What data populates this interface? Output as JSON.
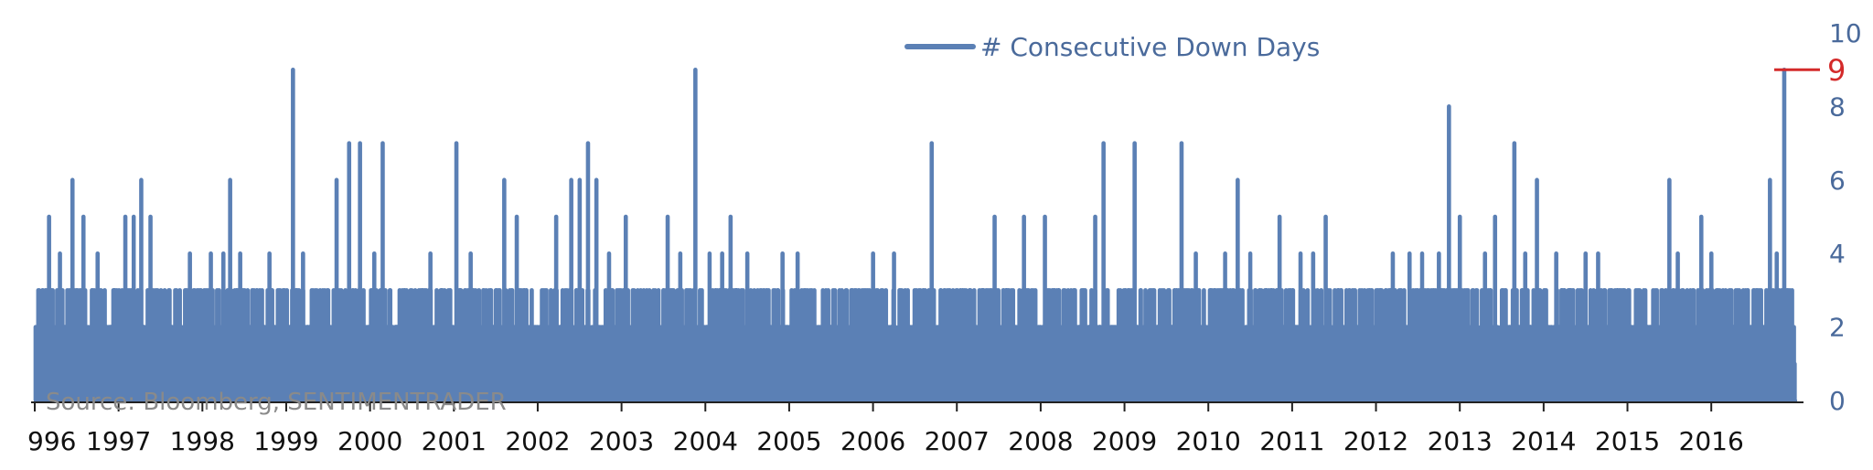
{
  "chart_data": {
    "type": "line",
    "title": "",
    "xlabel": "",
    "ylabel": "",
    "ylim": [
      0,
      10
    ],
    "xlim": [
      1996.0,
      2017.1
    ],
    "y_ticks": [
      "0",
      "2",
      "4",
      "6",
      "8",
      "10"
    ],
    "x_ticks": [
      "1996",
      "1997",
      "1998",
      "1999",
      "2000",
      "2001",
      "2002",
      "2003",
      "2004",
      "2005",
      "2006",
      "2007",
      "2008",
      "2009",
      "2010",
      "2011",
      "2012",
      "2013",
      "2014",
      "2015",
      "2016"
    ],
    "x_tick_labels": [
      "996",
      "1997",
      "1998",
      "1999",
      "2000",
      "2001",
      "2002",
      "2003",
      "2004",
      "2005",
      "2006",
      "2007",
      "2008",
      "2009",
      "2010",
      "2011",
      "2012",
      "2013",
      "2014",
      "2015",
      "2016"
    ],
    "legend": {
      "label": "# Consecutive Down Days",
      "position": "top-center"
    },
    "source": "Source: Bloomberg, SENTIMENTRADER",
    "annotation": {
      "label": "9",
      "value": 9,
      "color": "#d42a2a"
    },
    "series": [
      {
        "name": "# Consecutive Down Days",
        "color": "#5b80b5",
        "peaks": [
          [
            1996.05,
            2
          ],
          [
            1996.17,
            5
          ],
          [
            1996.3,
            4
          ],
          [
            1996.45,
            6
          ],
          [
            1996.58,
            5
          ],
          [
            1996.75,
            4
          ],
          [
            1996.95,
            3
          ],
          [
            1997.08,
            5
          ],
          [
            1997.18,
            5
          ],
          [
            1997.27,
            6
          ],
          [
            1997.38,
            5
          ],
          [
            1997.6,
            3
          ],
          [
            1997.85,
            4
          ],
          [
            1997.95,
            3
          ],
          [
            1998.1,
            4
          ],
          [
            1998.25,
            4
          ],
          [
            1998.33,
            6
          ],
          [
            1998.45,
            4
          ],
          [
            1998.6,
            3
          ],
          [
            1998.8,
            4
          ],
          [
            1999.08,
            9
          ],
          [
            1999.2,
            4
          ],
          [
            1999.5,
            3
          ],
          [
            1999.6,
            6
          ],
          [
            1999.75,
            7
          ],
          [
            1999.88,
            7
          ],
          [
            2000.05,
            4
          ],
          [
            2000.15,
            7
          ],
          [
            2000.4,
            3
          ],
          [
            2000.72,
            4
          ],
          [
            2000.85,
            3
          ],
          [
            2001.03,
            7
          ],
          [
            2001.2,
            4
          ],
          [
            2001.35,
            3
          ],
          [
            2001.6,
            6
          ],
          [
            2001.75,
            5
          ],
          [
            2002.05,
            3
          ],
          [
            2002.22,
            5
          ],
          [
            2002.4,
            6
          ],
          [
            2002.5,
            6
          ],
          [
            2002.6,
            7
          ],
          [
            2002.7,
            6
          ],
          [
            2002.85,
            4
          ],
          [
            2003.05,
            5
          ],
          [
            2003.3,
            3
          ],
          [
            2003.55,
            5
          ],
          [
            2003.7,
            4
          ],
          [
            2003.88,
            9
          ],
          [
            2004.05,
            4
          ],
          [
            2004.2,
            4
          ],
          [
            2004.3,
            5
          ],
          [
            2004.5,
            4
          ],
          [
            2004.7,
            3
          ],
          [
            2004.92,
            4
          ],
          [
            2005.1,
            4
          ],
          [
            2005.3,
            3
          ],
          [
            2005.6,
            3
          ],
          [
            2005.8,
            3
          ],
          [
            2006.0,
            4
          ],
          [
            2006.25,
            4
          ],
          [
            2006.6,
            3
          ],
          [
            2006.7,
            7
          ],
          [
            2006.85,
            3
          ],
          [
            2007.15,
            3
          ],
          [
            2007.45,
            5
          ],
          [
            2007.6,
            3
          ],
          [
            2007.8,
            5
          ],
          [
            2008.05,
            5
          ],
          [
            2008.4,
            3
          ],
          [
            2008.65,
            5
          ],
          [
            2008.75,
            7
          ],
          [
            2008.95,
            3
          ],
          [
            2009.12,
            7
          ],
          [
            2009.3,
            3
          ],
          [
            2009.52,
            3
          ],
          [
            2009.68,
            7
          ],
          [
            2009.85,
            4
          ],
          [
            2010.2,
            4
          ],
          [
            2010.35,
            6
          ],
          [
            2010.5,
            4
          ],
          [
            2010.75,
            3
          ],
          [
            2010.85,
            5
          ],
          [
            2011.1,
            4
          ],
          [
            2011.25,
            4
          ],
          [
            2011.4,
            5
          ],
          [
            2011.55,
            3
          ],
          [
            2011.75,
            3
          ],
          [
            2012.05,
            3
          ],
          [
            2012.2,
            4
          ],
          [
            2012.4,
            4
          ],
          [
            2012.55,
            4
          ],
          [
            2012.75,
            4
          ],
          [
            2012.87,
            8
          ],
          [
            2013.0,
            5
          ],
          [
            2013.15,
            2
          ],
          [
            2013.3,
            4
          ],
          [
            2013.42,
            5
          ],
          [
            2013.65,
            7
          ],
          [
            2013.78,
            4
          ],
          [
            2013.92,
            6
          ],
          [
            2014.15,
            4
          ],
          [
            2014.35,
            3
          ],
          [
            2014.5,
            4
          ],
          [
            2014.65,
            4
          ],
          [
            2014.85,
            3
          ],
          [
            2015.1,
            3
          ],
          [
            2015.35,
            3
          ],
          [
            2015.5,
            6
          ],
          [
            2015.6,
            4
          ],
          [
            2015.75,
            3
          ],
          [
            2015.88,
            5
          ],
          [
            2016.0,
            4
          ],
          [
            2016.1,
            3
          ],
          [
            2016.3,
            2
          ],
          [
            2016.45,
            2
          ],
          [
            2016.6,
            2
          ],
          [
            2016.7,
            6
          ],
          [
            2016.78,
            4
          ],
          [
            2016.87,
            9
          ]
        ]
      }
    ]
  }
}
